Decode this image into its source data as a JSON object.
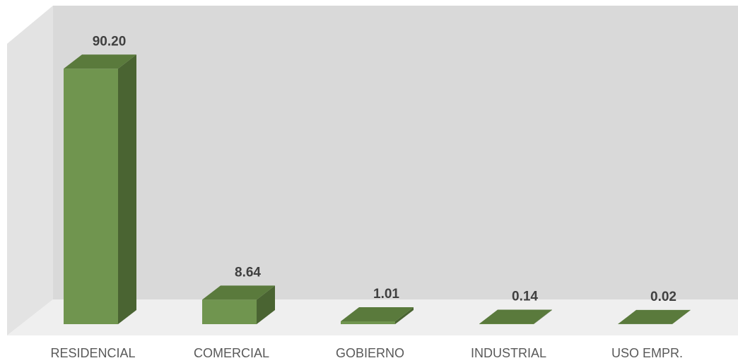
{
  "chart_data": {
    "type": "bar",
    "style": "3d-column",
    "categories": [
      "RESIDENCIAL",
      "COMERCIAL",
      "GOBIERNO",
      "INDUSTRIAL",
      "USO EMPR."
    ],
    "values": [
      90.2,
      8.64,
      1.01,
      0.14,
      0.02
    ],
    "value_labels": [
      "90.20",
      "8.64",
      "1.01",
      "0.14",
      "0.02"
    ],
    "title": "",
    "xlabel": "",
    "ylabel": "",
    "ylim": [
      0,
      100
    ],
    "grid": false,
    "legend": "none"
  },
  "colors": {
    "bar_front": "#70954f",
    "bar_side": "#4a6432",
    "bar_top": "#5a7a3c",
    "back_wall": "#d9d9d9",
    "floor": "#efefef",
    "side_wall": "#e3e3e3",
    "value_text": "#404040",
    "category_text": "#595959"
  }
}
